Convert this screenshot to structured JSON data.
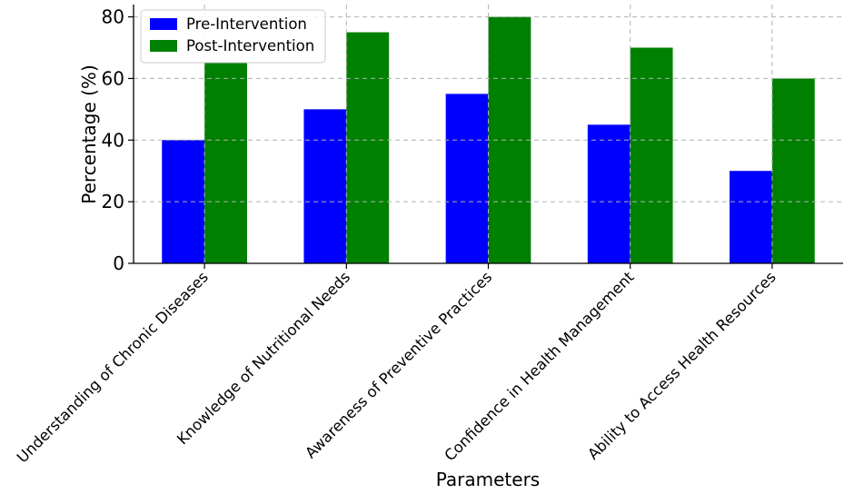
{
  "chart_data": {
    "type": "bar",
    "title": "",
    "xlabel": "Parameters",
    "ylabel": "Percentage (%)",
    "categories": [
      "Understanding of Chronic Diseases",
      "Knowledge of Nutritional Needs",
      "Awareness of Preventive Practices",
      "Confidence in Health Management",
      "Ability to Access Health Resources"
    ],
    "series": [
      {
        "name": "Pre-Intervention",
        "color": "#0000ff",
        "values": [
          40,
          50,
          55,
          45,
          30
        ]
      },
      {
        "name": "Post-Intervention",
        "color": "#008000",
        "values": [
          65,
          75,
          80,
          70,
          60
        ]
      }
    ],
    "yticks": [
      0,
      20,
      40,
      60,
      80
    ],
    "ylim": [
      0,
      84
    ],
    "grid": true,
    "legend_position": "top-left"
  }
}
